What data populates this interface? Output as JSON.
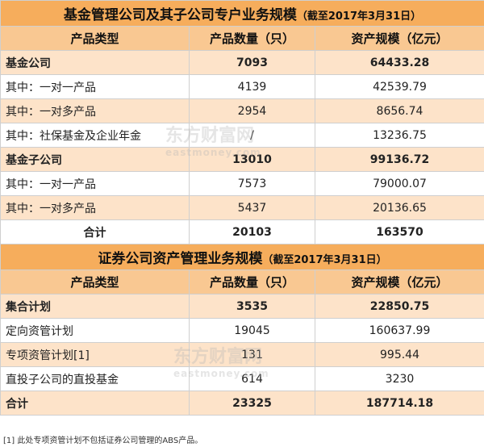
{
  "fund": {
    "title": "基金管理公司及其子公司专户业务规模",
    "title_note": "（截至2017年3月31日）",
    "headers": [
      "产品类型",
      "产品数量（只）",
      "资产规模（亿元）"
    ],
    "rows": [
      {
        "type": "基金公司",
        "count": "7093",
        "scale": "64433.28"
      },
      {
        "type": "其中：一对一产品",
        "count": "4139",
        "scale": "42539.79"
      },
      {
        "type": "其中：一对多产品",
        "count": "2954",
        "scale": "8656.74"
      },
      {
        "type": "其中：社保基金及企业年金",
        "count": "/",
        "scale": "13236.75"
      },
      {
        "type": "基金子公司",
        "count": "13010",
        "scale": "99136.72"
      },
      {
        "type": "其中：一对一产品",
        "count": "7573",
        "scale": "79000.07"
      },
      {
        "type": "其中：一对多产品",
        "count": "5437",
        "scale": "20136.65"
      }
    ],
    "total": {
      "type": "合计",
      "count": "20103",
      "scale": "163570"
    }
  },
  "securities": {
    "title": "证券公司资产管理业务规模",
    "title_note": "（截至2017年3月31日）",
    "headers": [
      "产品类型",
      "产品数量（只）",
      "资产规模（亿元）"
    ],
    "rows": [
      {
        "type": "集合计划",
        "count": "3535",
        "scale": "22850.75"
      },
      {
        "type": "定向资管计划",
        "count": "19045",
        "scale": "160637.99"
      },
      {
        "type": "专项资管计划[1]",
        "count": "131",
        "scale": "995.44"
      },
      {
        "type": "直投子公司的直投基金",
        "count": "614",
        "scale": "3230"
      }
    ],
    "total": {
      "type": "合计",
      "count": "23325",
      "scale": "187714.18"
    }
  },
  "footnote": "[1] 此处专项资管计划不包括证券公司管理的ABS产品。",
  "watermark": {
    "cn": "东方财富网",
    "en": "eastmoney.com"
  }
}
